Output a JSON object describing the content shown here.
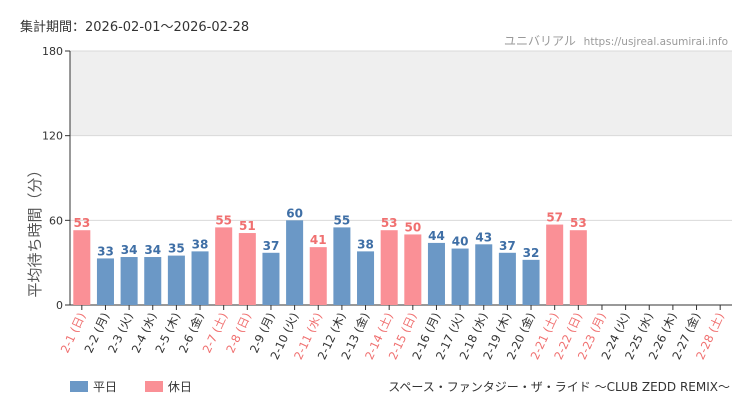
{
  "header": {
    "period_label": "集計期間：2026-02-01～2026-02-28",
    "brand_name": "ユニバリアル",
    "brand_url": "https://usjreal.asumirai.info"
  },
  "footer": {
    "attraction_title": "スペース・ファンタジー・ザ・ライド ～CLUB ZEDD REMIX～"
  },
  "colors": {
    "weekday": "#6b98c6",
    "holiday": "#fa9096",
    "weekday_text": "#3f6fa6",
    "holiday_text": "#f07070",
    "band": "#efefef",
    "grid": "#d9d9d9",
    "axis": "#333333"
  },
  "chart_data": {
    "type": "bar",
    "title": "",
    "xlabel": "",
    "ylabel": "平均待ち時間（分）",
    "ylim": [
      0,
      180
    ],
    "yticks": [
      0,
      60,
      120,
      180
    ],
    "shaded_band": [
      120,
      180
    ],
    "legend": [
      {
        "key": "weekday",
        "label": "平日"
      },
      {
        "key": "holiday",
        "label": "休日"
      }
    ],
    "categories": [
      "2-1 (日)",
      "2-2 (月)",
      "2-3 (火)",
      "2-4 (水)",
      "2-5 (木)",
      "2-6 (金)",
      "2-7 (土)",
      "2-8 (日)",
      "2-9 (月)",
      "2-10 (火)",
      "2-11 (水)",
      "2-12 (木)",
      "2-13 (金)",
      "2-14 (土)",
      "2-15 (日)",
      "2-16 (月)",
      "2-17 (火)",
      "2-18 (水)",
      "2-19 (木)",
      "2-20 (金)",
      "2-21 (土)",
      "2-22 (日)",
      "2-23 (月)",
      "2-24 (火)",
      "2-25 (水)",
      "2-26 (木)",
      "2-27 (金)",
      "2-28 (土)"
    ],
    "values": [
      53,
      33,
      34,
      34,
      35,
      38,
      55,
      51,
      37,
      60,
      41,
      55,
      38,
      53,
      50,
      44,
      40,
      43,
      37,
      32,
      57,
      53,
      null,
      null,
      null,
      null,
      null,
      null
    ],
    "day_type": [
      "holiday",
      "weekday",
      "weekday",
      "weekday",
      "weekday",
      "weekday",
      "holiday",
      "holiday",
      "weekday",
      "weekday",
      "holiday",
      "weekday",
      "weekday",
      "holiday",
      "holiday",
      "weekday",
      "weekday",
      "weekday",
      "weekday",
      "weekday",
      "holiday",
      "holiday",
      "holiday",
      "weekday",
      "weekday",
      "weekday",
      "weekday",
      "holiday"
    ]
  }
}
